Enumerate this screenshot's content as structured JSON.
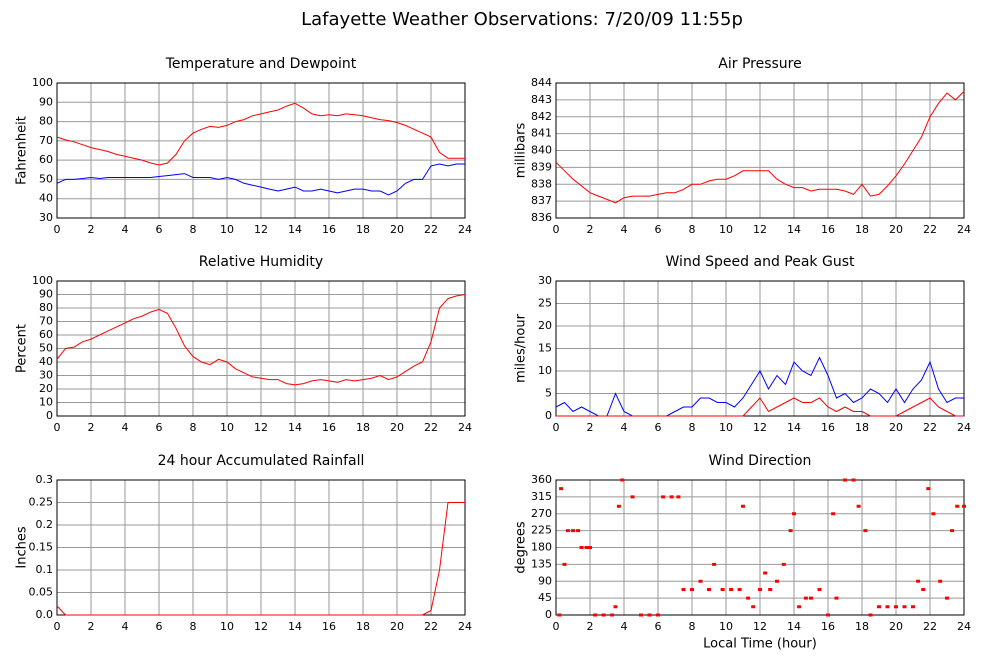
{
  "title": "Lafayette Weather Observations: 7/20/09 11:55p",
  "chart_data": [
    {
      "type": "line",
      "title": "Temperature and Dewpoint",
      "ylabel": "Fahrenheit",
      "x": [
        0,
        0.5,
        1,
        1.5,
        2,
        2.5,
        3,
        3.5,
        4,
        4.5,
        5,
        5.5,
        6,
        6.5,
        7,
        7.5,
        8,
        8.5,
        9,
        9.5,
        10,
        10.5,
        11,
        11.5,
        12,
        12.5,
        13,
        13.5,
        14,
        14.5,
        15,
        15.5,
        16,
        16.5,
        17,
        17.5,
        18,
        18.5,
        19,
        19.5,
        20,
        20.5,
        21,
        21.5,
        22,
        22.5,
        23,
        23.5,
        24
      ],
      "series": [
        {
          "color": "#ff0000",
          "values": [
            72,
            70.5,
            69.5,
            68,
            66.5,
            65.5,
            64.5,
            63,
            62,
            61,
            60,
            58.5,
            57.5,
            58.5,
            63,
            70,
            74,
            76,
            77.5,
            77,
            78,
            80,
            81,
            83,
            84,
            85,
            86,
            88,
            89.5,
            87,
            84,
            83,
            83.5,
            83,
            84,
            83.5,
            83,
            82,
            81,
            80.5,
            79.5,
            78,
            76,
            74,
            72,
            64,
            61,
            61,
            61
          ]
        },
        {
          "color": "#0000ff",
          "values": [
            48,
            50,
            50,
            50.5,
            51,
            50.5,
            51,
            51,
            51,
            51,
            51,
            51,
            51.5,
            52,
            52.5,
            53,
            51,
            51,
            51,
            50,
            51,
            50,
            48,
            47,
            46,
            45,
            44,
            45,
            46,
            44,
            44,
            45,
            44,
            43,
            44,
            45,
            45,
            44,
            44,
            42,
            44,
            48,
            50,
            50,
            57,
            58,
            57,
            58,
            58
          ]
        }
      ],
      "xlim": [
        0,
        24
      ],
      "xticks": [
        0,
        2,
        4,
        6,
        8,
        10,
        12,
        14,
        16,
        18,
        20,
        22,
        24
      ],
      "ylim": [
        30,
        100
      ],
      "yticks": [
        30,
        40,
        50,
        60,
        70,
        80,
        90,
        100
      ],
      "grid": true
    },
    {
      "type": "line",
      "title": "Air Pressure",
      "ylabel": "millibars",
      "x": [
        0,
        0.5,
        1,
        1.5,
        2,
        2.5,
        3,
        3.5,
        4,
        4.5,
        5,
        5.5,
        6,
        6.5,
        7,
        7.5,
        8,
        8.5,
        9,
        9.5,
        10,
        10.5,
        11,
        11.5,
        12,
        12.5,
        13,
        13.5,
        14,
        14.5,
        15,
        15.5,
        16,
        16.5,
        17,
        17.5,
        18,
        18.5,
        19,
        19.5,
        20,
        20.5,
        21,
        21.5,
        22,
        22.5,
        23,
        23.5,
        24
      ],
      "series": [
        {
          "color": "#ff0000",
          "values": [
            839.3,
            838.8,
            838.3,
            837.9,
            837.5,
            837.3,
            837.1,
            836.9,
            837.2,
            837.3,
            837.3,
            837.3,
            837.4,
            837.5,
            837.5,
            837.7,
            838,
            838,
            838.2,
            838.3,
            838.3,
            838.5,
            838.8,
            838.8,
            838.8,
            838.8,
            838.3,
            838,
            837.8,
            837.8,
            837.6,
            837.7,
            837.7,
            837.7,
            837.6,
            837.4,
            838,
            837.3,
            837.4,
            837.9,
            838.5,
            839.2,
            840,
            840.8,
            842,
            842.8,
            843.4,
            843,
            843.5
          ]
        }
      ],
      "xlim": [
        0,
        24
      ],
      "xticks": [
        0,
        2,
        4,
        6,
        8,
        10,
        12,
        14,
        16,
        18,
        20,
        22,
        24
      ],
      "ylim": [
        836,
        844
      ],
      "yticks": [
        836,
        837,
        838,
        839,
        840,
        841,
        842,
        843,
        844
      ],
      "grid": true
    },
    {
      "type": "line",
      "title": "Relative Humidity",
      "ylabel": "Percent",
      "x": [
        0,
        0.5,
        1,
        1.5,
        2,
        2.5,
        3,
        3.5,
        4,
        4.5,
        5,
        5.5,
        6,
        6.5,
        7,
        7.5,
        8,
        8.5,
        9,
        9.5,
        10,
        10.5,
        11,
        11.5,
        12,
        12.5,
        13,
        13.5,
        14,
        14.5,
        15,
        15.5,
        16,
        16.5,
        17,
        17.5,
        18,
        18.5,
        19,
        19.5,
        20,
        20.5,
        21,
        21.5,
        22,
        22.5,
        23,
        23.5,
        24
      ],
      "series": [
        {
          "color": "#ff0000",
          "values": [
            42,
            50,
            51,
            55,
            57,
            60,
            63,
            66,
            69,
            72,
            74,
            77,
            79,
            76,
            65,
            52,
            44,
            40,
            38,
            42,
            40,
            35,
            32,
            29,
            28,
            27,
            27,
            24,
            23,
            24,
            26,
            27,
            26,
            25,
            27,
            26,
            27,
            28,
            30,
            27,
            29,
            33,
            37,
            40,
            55,
            80,
            87,
            89,
            90
          ]
        }
      ],
      "xlim": [
        0,
        24
      ],
      "xticks": [
        0,
        2,
        4,
        6,
        8,
        10,
        12,
        14,
        16,
        18,
        20,
        22,
        24
      ],
      "ylim": [
        0,
        100
      ],
      "yticks": [
        0,
        10,
        20,
        30,
        40,
        50,
        60,
        70,
        80,
        90,
        100
      ],
      "grid": true
    },
    {
      "type": "line",
      "title": "Wind Speed and Peak Gust",
      "ylabel": "miles/hour",
      "x": [
        0,
        0.5,
        1,
        1.5,
        2,
        2.5,
        3,
        3.5,
        4,
        4.5,
        5,
        5.5,
        6,
        6.5,
        7,
        7.5,
        8,
        8.5,
        9,
        9.5,
        10,
        10.5,
        11,
        11.5,
        12,
        12.5,
        13,
        13.5,
        14,
        14.5,
        15,
        15.5,
        16,
        16.5,
        17,
        17.5,
        18,
        18.5,
        19,
        19.5,
        20,
        20.5,
        21,
        21.5,
        22,
        22.5,
        23,
        23.5,
        24
      ],
      "series": [
        {
          "color": "#0000ff",
          "values": [
            2,
            3,
            1,
            2,
            1,
            0,
            0,
            5,
            1,
            0,
            0,
            0,
            0,
            0,
            1,
            2,
            2,
            4,
            4,
            3,
            3,
            2,
            4,
            7,
            10,
            6,
            9,
            7,
            12,
            10,
            9,
            13,
            9,
            4,
            5,
            3,
            4,
            6,
            5,
            3,
            6,
            3,
            6,
            8,
            12,
            6,
            3,
            4,
            4
          ]
        },
        {
          "color": "#ff0000",
          "values": [
            0,
            0,
            0,
            0,
            0,
            0,
            0,
            0,
            0,
            0,
            0,
            0,
            0,
            0,
            0,
            0,
            0,
            0,
            0,
            0,
            0,
            0,
            0,
            2,
            4,
            1,
            2,
            3,
            4,
            3,
            3,
            4,
            2,
            1,
            2,
            1,
            1,
            0,
            0,
            0,
            0,
            1,
            2,
            3,
            4,
            2,
            1,
            0,
            0
          ]
        }
      ],
      "xlim": [
        0,
        24
      ],
      "xticks": [
        0,
        2,
        4,
        6,
        8,
        10,
        12,
        14,
        16,
        18,
        20,
        22,
        24
      ],
      "ylim": [
        0,
        30
      ],
      "yticks": [
        0,
        5,
        10,
        15,
        20,
        25,
        30
      ],
      "grid": true
    },
    {
      "type": "line",
      "title": "24 hour Accumulated Rainfall",
      "ylabel": "Inches",
      "x": [
        0,
        0.5,
        1,
        1.5,
        2,
        2.5,
        3,
        3.5,
        4,
        4.5,
        5,
        5.5,
        6,
        6.5,
        7,
        7.5,
        8,
        8.5,
        9,
        9.5,
        10,
        10.5,
        11,
        11.5,
        12,
        12.5,
        13,
        13.5,
        14,
        14.5,
        15,
        15.5,
        16,
        16.5,
        17,
        17.5,
        18,
        18.5,
        19,
        19.5,
        20,
        20.5,
        21,
        21.5,
        22,
        22.5,
        23,
        23.5,
        24
      ],
      "series": [
        {
          "color": "#ff0000",
          "values": [
            0.02,
            0,
            0,
            0,
            0,
            0,
            0,
            0,
            0,
            0,
            0,
            0,
            0,
            0,
            0,
            0,
            0,
            0,
            0,
            0,
            0,
            0,
            0,
            0,
            0,
            0,
            0,
            0,
            0,
            0,
            0,
            0,
            0,
            0,
            0,
            0,
            0,
            0,
            0,
            0,
            0,
            0,
            0,
            0,
            0.01,
            0.1,
            0.25,
            0.25,
            0.25
          ]
        }
      ],
      "xlim": [
        0,
        24
      ],
      "xticks": [
        0,
        2,
        4,
        6,
        8,
        10,
        12,
        14,
        16,
        18,
        20,
        22,
        24
      ],
      "ylim": [
        0,
        0.3
      ],
      "yticks": [
        {
          "value": 0,
          "label": "0.0"
        },
        0.05,
        0.1,
        0.15,
        0.2,
        0.25,
        0.3
      ],
      "grid": true
    },
    {
      "type": "scatter",
      "title": "Wind Direction",
      "ylabel": "degrees",
      "xlabel": "Local Time (hour)",
      "color": "#ff0000",
      "x": [
        0.2,
        0.3,
        0.5,
        0.7,
        1,
        1.3,
        1.5,
        1.8,
        2,
        2.3,
        2.8,
        3.3,
        3.5,
        3.7,
        3.9,
        4.5,
        5,
        5.5,
        6,
        6.3,
        6.8,
        7.2,
        7.5,
        8,
        8.5,
        9,
        9.3,
        9.8,
        10.3,
        10.8,
        11,
        11.3,
        11.6,
        12,
        12.3,
        12.6,
        13,
        13.4,
        13.8,
        14,
        14.3,
        14.7,
        15,
        15.5,
        16,
        16.3,
        16.5,
        17,
        17.5,
        17.8,
        18.2,
        18.5,
        19,
        19.5,
        20,
        20.5,
        21,
        21.3,
        21.6,
        21.9,
        22.2,
        22.6,
        23,
        23.3,
        23.6,
        24
      ],
      "values": [
        0,
        337,
        135,
        225,
        225,
        225,
        180,
        180,
        180,
        0,
        0,
        0,
        22,
        290,
        360,
        315,
        0,
        0,
        0,
        315,
        315,
        315,
        68,
        68,
        90,
        68,
        135,
        68,
        68,
        68,
        290,
        45,
        22,
        68,
        112,
        68,
        90,
        135,
        225,
        270,
        22,
        45,
        45,
        68,
        0,
        270,
        45,
        360,
        360,
        290,
        225,
        0,
        22,
        22,
        22,
        22,
        22,
        90,
        68,
        337,
        270,
        90,
        45,
        225,
        290,
        290
      ],
      "xlim": [
        0,
        24
      ],
      "xticks": [
        0,
        2,
        4,
        6,
        8,
        10,
        12,
        14,
        16,
        18,
        20,
        22,
        24
      ],
      "ylim": [
        0,
        360
      ],
      "yticks": [
        0,
        45,
        90,
        135,
        180,
        225,
        270,
        315,
        360
      ],
      "grid": true
    }
  ]
}
